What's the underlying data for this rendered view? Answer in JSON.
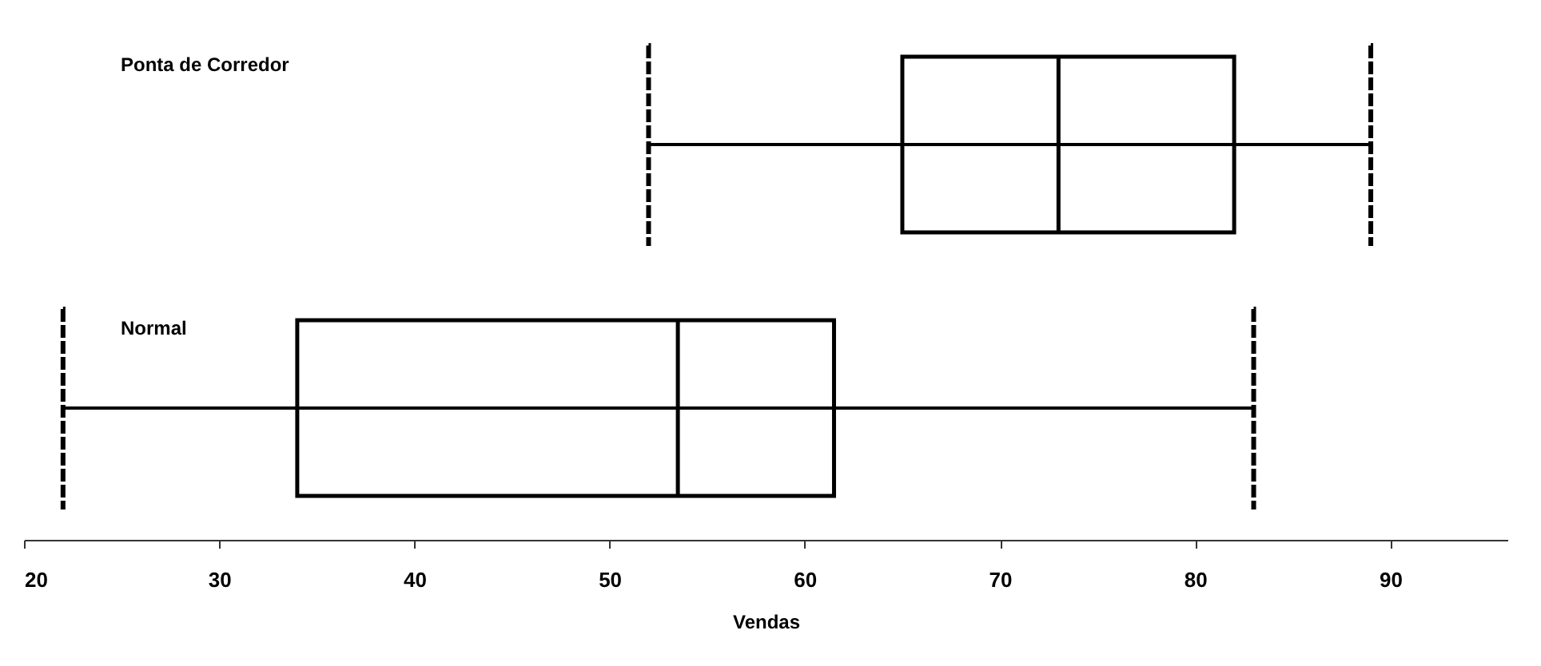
{
  "chart_data": {
    "type": "box",
    "orientation": "horizontal",
    "xlabel": "Vendas",
    "categories": [
      "Ponta de Corredor",
      "Normal"
    ],
    "boxes": [
      {
        "low": 52,
        "q1": 65,
        "median": 73,
        "q3": 82,
        "high": 89
      },
      {
        "low": 22,
        "q1": 34,
        "median": 53.5,
        "q3": 61.5,
        "high": 83
      }
    ],
    "xlim": [
      20,
      96
    ],
    "xticks": [
      20,
      30,
      40,
      50,
      60,
      70,
      80,
      90
    ],
    "grid": false,
    "tick_labels": "x"
  }
}
